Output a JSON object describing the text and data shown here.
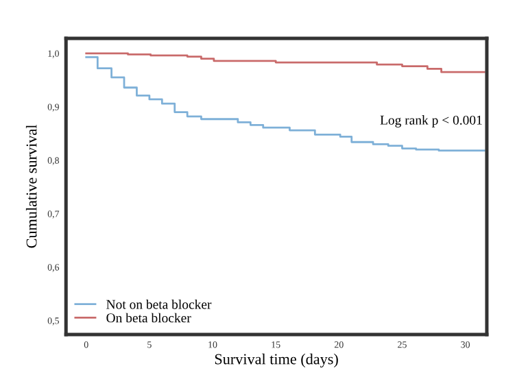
{
  "chart_data": {
    "type": "step",
    "xlabel": "Survival time (days)",
    "ylabel": "Cumulative survival",
    "annotations": [
      "Log rank p < 0.001"
    ],
    "xlim": [
      -1.6,
      31.7
    ],
    "ylim": [
      0.474,
      1.028
    ],
    "xticks": [
      0,
      5,
      10,
      15,
      20,
      25,
      30
    ],
    "yticks": [
      {
        "value": 0.5,
        "label": "0,5"
      },
      {
        "value": 0.6,
        "label": "0,6"
      },
      {
        "value": 0.7,
        "label": "0,7"
      },
      {
        "value": 0.8,
        "label": "0,8"
      },
      {
        "value": 0.9,
        "label": "0,9"
      },
      {
        "value": 1.0,
        "label": "1,0"
      }
    ],
    "grid": false,
    "legend": "bottom left",
    "marker": "none",
    "line_style": "solid",
    "series": [
      {
        "name": "Not on beta blocker",
        "color": "#7eb0d8",
        "x": [
          0,
          0.9,
          2.0,
          3.0,
          4.0,
          5.0,
          6.0,
          7.0,
          8.0,
          9.1,
          12.0,
          13.0,
          14.0,
          16.1,
          18.1,
          20.1,
          21.0,
          22.7,
          23.9,
          25.0,
          26.1,
          27.9,
          31.5
        ],
        "values": [
          0.993,
          0.972,
          0.955,
          0.936,
          0.921,
          0.914,
          0.906,
          0.89,
          0.882,
          0.877,
          0.871,
          0.866,
          0.861,
          0.856,
          0.848,
          0.844,
          0.834,
          0.83,
          0.827,
          0.822,
          0.82,
          0.818,
          0.818
        ]
      },
      {
        "name": "On beta blocker",
        "color": "#c96a6a",
        "x": [
          0,
          3.3,
          5.1,
          8.0,
          9.1,
          10.1,
          15.0,
          23.0,
          25.0,
          27.0,
          28.1,
          31.5
        ],
        "values": [
          1.0,
          0.998,
          0.996,
          0.994,
          0.99,
          0.986,
          0.983,
          0.979,
          0.976,
          0.971,
          0.965,
          0.965
        ]
      }
    ]
  }
}
